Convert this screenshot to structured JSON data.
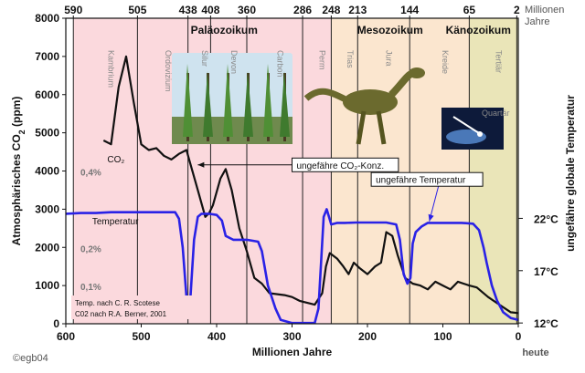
{
  "chart_data": {
    "type": "line",
    "xlabel": "Millionen Jahre",
    "ylabel": "Atmosphärisches CO2 (ppm)",
    "ylabel_right": "ungefähre globale Temperatur",
    "xlim": [
      600,
      0
    ],
    "ylim": [
      0,
      8000
    ],
    "x_ticks": [
      600,
      500,
      400,
      300,
      200,
      100,
      0
    ],
    "y_ticks": [
      0,
      1000,
      2000,
      3000,
      4000,
      5000,
      6000,
      7000,
      8000
    ],
    "top_axis": {
      "unit": "Millionen Jahre",
      "ticks": [
        590,
        505,
        438,
        408,
        360,
        286,
        248,
        213,
        144,
        65,
        2
      ]
    },
    "eras": [
      {
        "label": "Paläozoikum",
        "x": 390
      },
      {
        "label": "Mesozoikum",
        "x": 170
      },
      {
        "label": "Känozoikum",
        "x": 53
      }
    ],
    "periods": [
      {
        "label": "Kambrium",
        "start": 590,
        "end": 505,
        "color": "#fbd9dd"
      },
      {
        "label": "Ordovizium",
        "start": 505,
        "end": 438,
        "color": "#fbd9dd"
      },
      {
        "label": "Silur",
        "start": 438,
        "end": 408,
        "color": "#fbd9dd"
      },
      {
        "label": "Devon",
        "start": 408,
        "end": 360,
        "color": "#fbd9dd"
      },
      {
        "label": "Carbon",
        "start": 360,
        "end": 286,
        "color": "#fbd9dd"
      },
      {
        "label": "Perm",
        "start": 286,
        "end": 248,
        "color": "#fbd9dd"
      },
      {
        "label": "Trias",
        "start": 248,
        "end": 213,
        "color": "#fbe6cf"
      },
      {
        "label": "Jura",
        "start": 213,
        "end": 144,
        "color": "#fbe6cf"
      },
      {
        "label": "Kreide",
        "start": 144,
        "end": 65,
        "color": "#fbe6cf"
      },
      {
        "label": "Tertiär",
        "start": 65,
        "end": 2,
        "color": "#eae5b8"
      },
      {
        "label": "Quartär",
        "start": 2,
        "end": 0,
        "color": "#eae5b8"
      }
    ],
    "boundaries": [
      590,
      505,
      438,
      408,
      360,
      286,
      248,
      213,
      144,
      65,
      2
    ],
    "co2_pct_labels": [
      {
        "label": "0,4%",
        "y": 4000
      },
      {
        "label": "0,2%",
        "y": 2000
      },
      {
        "label": "0,1%",
        "y": 1000
      }
    ],
    "temp_labels": [
      {
        "label": "22°C",
        "y": 2760
      },
      {
        "label": "17°C",
        "y": 1390
      },
      {
        "label": "12°C",
        "y": 20
      }
    ],
    "series": [
      {
        "name": "CO2",
        "color": "#111111",
        "points": [
          [
            550,
            4800
          ],
          [
            540,
            4700
          ],
          [
            530,
            6200
          ],
          [
            520,
            7000
          ],
          [
            510,
            5800
          ],
          [
            500,
            4700
          ],
          [
            490,
            4550
          ],
          [
            480,
            4600
          ],
          [
            470,
            4400
          ],
          [
            460,
            4300
          ],
          [
            450,
            4450
          ],
          [
            440,
            4550
          ],
          [
            435,
            4200
          ],
          [
            425,
            3500
          ],
          [
            415,
            2800
          ],
          [
            410,
            2900
          ],
          [
            405,
            3100
          ],
          [
            395,
            3800
          ],
          [
            388,
            4050
          ],
          [
            380,
            3500
          ],
          [
            370,
            2500
          ],
          [
            360,
            1900
          ],
          [
            350,
            1200
          ],
          [
            340,
            1050
          ],
          [
            330,
            800
          ],
          [
            310,
            750
          ],
          [
            300,
            700
          ],
          [
            290,
            600
          ],
          [
            270,
            500
          ],
          [
            260,
            800
          ],
          [
            255,
            1500
          ],
          [
            250,
            1850
          ],
          [
            240,
            1700
          ],
          [
            232,
            1500
          ],
          [
            225,
            1300
          ],
          [
            218,
            1600
          ],
          [
            210,
            1450
          ],
          [
            200,
            1300
          ],
          [
            190,
            1500
          ],
          [
            182,
            1600
          ],
          [
            175,
            2400
          ],
          [
            167,
            2300
          ],
          [
            160,
            1800
          ],
          [
            150,
            1200
          ],
          [
            140,
            1050
          ],
          [
            130,
            1000
          ],
          [
            120,
            900
          ],
          [
            110,
            1100
          ],
          [
            100,
            1000
          ],
          [
            90,
            900
          ],
          [
            80,
            1100
          ],
          [
            65,
            1000
          ],
          [
            55,
            950
          ],
          [
            40,
            700
          ],
          [
            25,
            500
          ],
          [
            10,
            300
          ],
          [
            0,
            280
          ]
        ]
      },
      {
        "name": "Temperatur",
        "color": "#2a22e6",
        "points": [
          [
            600,
            2880
          ],
          [
            580,
            2900
          ],
          [
            560,
            2900
          ],
          [
            540,
            2920
          ],
          [
            520,
            2920
          ],
          [
            500,
            2920
          ],
          [
            470,
            2920
          ],
          [
            455,
            2920
          ],
          [
            450,
            2750
          ],
          [
            445,
            2000
          ],
          [
            440,
            700
          ],
          [
            435,
            600
          ],
          [
            430,
            2200
          ],
          [
            425,
            2800
          ],
          [
            420,
            2880
          ],
          [
            410,
            2880
          ],
          [
            400,
            2850
          ],
          [
            393,
            2700
          ],
          [
            388,
            2300
          ],
          [
            378,
            2200
          ],
          [
            360,
            2200
          ],
          [
            345,
            2150
          ],
          [
            340,
            1900
          ],
          [
            332,
            1000
          ],
          [
            322,
            400
          ],
          [
            315,
            100
          ],
          [
            300,
            20
          ],
          [
            285,
            20
          ],
          [
            270,
            20
          ],
          [
            265,
            400
          ],
          [
            258,
            2800
          ],
          [
            254,
            3000
          ],
          [
            248,
            2600
          ],
          [
            240,
            2640
          ],
          [
            230,
            2640
          ],
          [
            215,
            2650
          ],
          [
            200,
            2650
          ],
          [
            175,
            2650
          ],
          [
            162,
            2600
          ],
          [
            157,
            2200
          ],
          [
            152,
            1300
          ],
          [
            147,
            1050
          ],
          [
            143,
            1200
          ],
          [
            140,
            2100
          ],
          [
            136,
            2400
          ],
          [
            128,
            2550
          ],
          [
            120,
            2640
          ],
          [
            105,
            2640
          ],
          [
            90,
            2640
          ],
          [
            75,
            2640
          ],
          [
            60,
            2620
          ],
          [
            52,
            2450
          ],
          [
            46,
            2000
          ],
          [
            42,
            1600
          ],
          [
            35,
            1000
          ],
          [
            28,
            600
          ],
          [
            20,
            300
          ],
          [
            10,
            150
          ],
          [
            0,
            100
          ]
        ]
      }
    ],
    "callouts": [
      {
        "label": "ungefähre CO2-Konz.",
        "x": 300,
        "y": 4160,
        "target": [
          425,
          4160
        ]
      },
      {
        "label": "ungefähre Temperatur",
        "x": 195,
        "y": 3780,
        "target": [
          118,
          2680
        ]
      }
    ],
    "series_labels": [
      {
        "label": "CO2",
        "x": 545,
        "y": 4320
      },
      {
        "label": "Temperatur",
        "x": 565,
        "y": 2700
      }
    ],
    "right_side_note": "heute",
    "notes": [
      "Temp. nach C. R. Scotese",
      "C02 nach R.A. Berner, 2001"
    ],
    "copyright": "©egb04"
  }
}
